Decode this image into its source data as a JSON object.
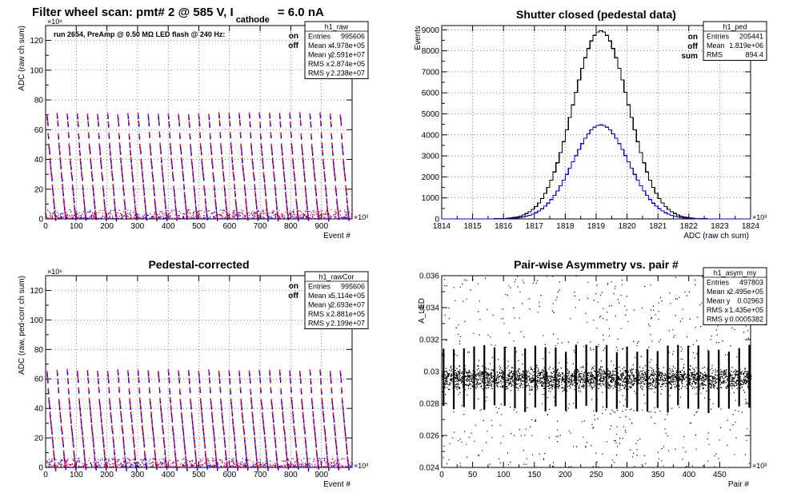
{
  "figure": {
    "main_title_prefix": "Filter wheel scan: pmt#   2 @   585 V, I",
    "main_title_sub": "cathode",
    "main_title_suffix": "= 6.0 nA"
  },
  "colors": {
    "on": "#ff0000",
    "off": "#0000ff",
    "sum": "#000000",
    "frame": "#000000"
  },
  "chart_data": [
    {
      "id": "raw",
      "type": "scatter",
      "title": "",
      "xlabel": "Event #",
      "ylabel": "ADC (raw ch sum)",
      "x_multiplier": "×10³",
      "y_multiplier": "×10⁶",
      "xlim": [
        0,
        1000
      ],
      "ylim": [
        0,
        130
      ],
      "xticks": [
        0,
        100,
        200,
        300,
        400,
        500,
        600,
        700,
        800,
        900
      ],
      "yticks": [
        0,
        20,
        40,
        60,
        80,
        100,
        120
      ],
      "grid": true,
      "annotation": "run 2654, PreAmp @ 0.50 MΩ   LED flash @  240 Hz:",
      "legend": [
        "on",
        "off"
      ],
      "pattern": {
        "period": 33,
        "levels": [
          70,
          65,
          57,
          50,
          46,
          40,
          36,
          31,
          28,
          22,
          18,
          13,
          9,
          5,
          2
        ]
      },
      "stats": {
        "name": "h1_raw",
        "rows": [
          [
            "Entries",
            "995606"
          ],
          [
            "Mean x",
            "4.978e+05"
          ],
          [
            "Mean y",
            "2.591e+07"
          ],
          [
            "RMS x",
            "2.874e+05"
          ],
          [
            "RMS y",
            "2.238e+07"
          ]
        ]
      }
    },
    {
      "id": "ped",
      "type": "line",
      "title": "Shutter closed (pedestal data)",
      "xlabel": "ADC (raw ch sum)",
      "ylabel": "Events",
      "x_multiplier": "×10³",
      "xlim": [
        1814,
        1824
      ],
      "ylim": [
        0,
        9200
      ],
      "xticks": [
        1814,
        1815,
        1816,
        1817,
        1818,
        1819,
        1820,
        1821,
        1822,
        1823,
        1824
      ],
      "yticks": [
        0,
        1000,
        2000,
        3000,
        4000,
        5000,
        6000,
        7000,
        8000,
        9000
      ],
      "grid": true,
      "legend": [
        "on",
        "off",
        "sum"
      ],
      "series": [
        {
          "name": "sum",
          "mean": 1819.15,
          "sigma": 0.9,
          "peak": 8950
        },
        {
          "name": "on",
          "mean": 1819.15,
          "sigma": 0.9,
          "peak": 4475
        },
        {
          "name": "off",
          "mean": 1819.15,
          "sigma": 0.9,
          "peak": 4475
        }
      ],
      "stats": {
        "name": "h1_ped",
        "rows": [
          [
            "Entries",
            "205441"
          ],
          [
            "Mean",
            "1.819e+06"
          ],
          [
            "RMS",
            "894.4"
          ]
        ]
      }
    },
    {
      "id": "rawCor",
      "type": "scatter",
      "title": "Pedestal-corrected",
      "xlabel": "Event #",
      "ylabel": "ADC (raw, ped-corr ch sum)",
      "x_multiplier": "×10³",
      "y_multiplier": "×10⁶",
      "xlim": [
        0,
        1000
      ],
      "ylim": [
        0,
        130
      ],
      "xticks": [
        0,
        100,
        200,
        300,
        400,
        500,
        600,
        700,
        800,
        900
      ],
      "yticks": [
        0,
        20,
        40,
        60,
        80,
        100,
        120
      ],
      "grid": true,
      "legend": [
        "on",
        "off"
      ],
      "pattern": {
        "period": 33,
        "levels": [
          65,
          60,
          53,
          46,
          42,
          37,
          33,
          28,
          25,
          20,
          16,
          11,
          7,
          3,
          1
        ]
      },
      "stats": {
        "name": "h1_rawCor",
        "rows": [
          [
            "Entries",
            "995606"
          ],
          [
            "Mean x",
            "5.114e+05"
          ],
          [
            "Mean y",
            "2.693e+07"
          ],
          [
            "RMS x",
            "2.881e+05"
          ],
          [
            "RMS y",
            "2.199e+07"
          ]
        ]
      }
    },
    {
      "id": "asym",
      "type": "scatter",
      "title": "Pair-wise Asymmetry vs. pair #",
      "xlabel": "Pair #",
      "ylabel": "A_LED",
      "x_multiplier": "×10³",
      "xlim": [
        0,
        500
      ],
      "ylim": [
        0.024,
        0.036
      ],
      "xticks": [
        0,
        50,
        100,
        150,
        200,
        250,
        300,
        350,
        400,
        450
      ],
      "yticks": [
        0.024,
        0.026,
        0.028,
        0.03,
        0.032,
        0.034,
        0.036
      ],
      "grid": false,
      "band": {
        "center": 0.0296,
        "width": 0.0004,
        "spike_period": 16.5
      },
      "stats": {
        "name": "h1_asym_my",
        "rows": [
          [
            "Entries",
            "497803"
          ],
          [
            "Mean x",
            "2.495e+05"
          ],
          [
            "Mean y",
            "0.02963"
          ],
          [
            "RMS x",
            "1.435e+05"
          ],
          [
            "RMS y",
            "0.0005382"
          ]
        ]
      }
    }
  ]
}
